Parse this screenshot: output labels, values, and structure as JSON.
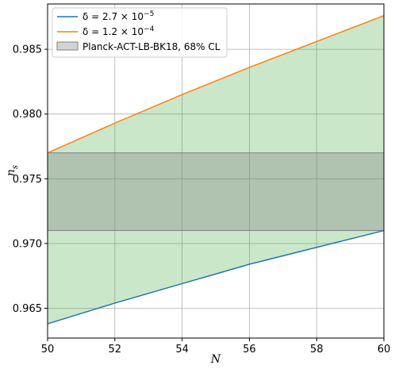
{
  "chart_data": {
    "type": "line",
    "title": "",
    "xlabel": "N",
    "ylabel_main": "n",
    "ylabel_sub": "s",
    "xlim": [
      50,
      60
    ],
    "ylim": [
      0.9627,
      0.9885
    ],
    "grid": true,
    "legend_position": "top-left",
    "x_ticks": [
      50,
      52,
      54,
      56,
      58,
      60
    ],
    "x_tick_labels": [
      "50",
      "52",
      "54",
      "56",
      "58",
      "60"
    ],
    "y_ticks": [
      0.965,
      0.97,
      0.975,
      0.98,
      0.985
    ],
    "y_tick_labels": [
      "0.965",
      "0.970",
      "0.975",
      "0.980",
      "0.985"
    ],
    "series": [
      {
        "name": "δ = 2.7 × 10⁻⁵",
        "legend": {
          "prefix": "δ = 2.7 × 10",
          "sup": "−5"
        },
        "color": "#1f77b4",
        "x": [
          50,
          52,
          54,
          56,
          58,
          60
        ],
        "y": [
          0.9638,
          0.9654,
          0.9669,
          0.9684,
          0.9697,
          0.971
        ]
      },
      {
        "name": "δ = 1.2 × 10⁻⁴",
        "legend": {
          "prefix": "δ = 1.2 × 10",
          "sup": "−4"
        },
        "color": "#ff7f0e",
        "x": [
          50,
          52,
          54,
          56,
          58,
          60
        ],
        "y": [
          0.977,
          0.9793,
          0.9815,
          0.9836,
          0.9856,
          0.9876
        ]
      }
    ],
    "fill_between": {
      "color": "#2ca02c",
      "opacity": 0.25
    },
    "band": {
      "name": "Planck-ACT-LB-BK18, 68% CL",
      "y_low": 0.971,
      "y_high": 0.977,
      "color": "#808080",
      "opacity": 0.35,
      "legend_face": "#d3d3d3",
      "legend_edge": "#808080"
    }
  }
}
